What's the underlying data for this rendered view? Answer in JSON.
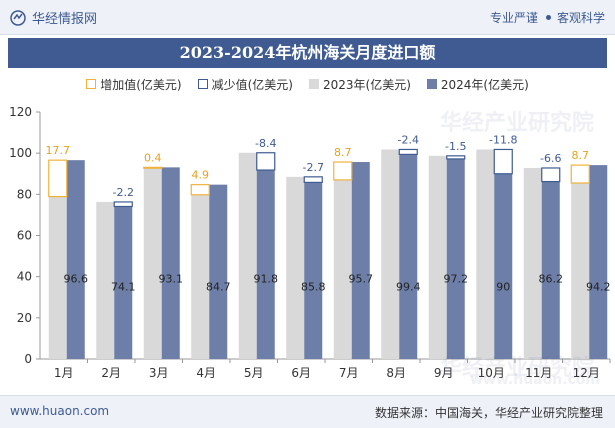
{
  "header": {
    "brand": "华经情报网",
    "tagline_a": "专业严谨",
    "tagline_b": "客观科学"
  },
  "footer": {
    "site": "www.huaon.com",
    "source": "数据来源：中国海关，华经产业研究院整理"
  },
  "watermark": {
    "text": "华经产业研究院",
    "url": "www.huaon.com"
  },
  "colors": {
    "increase": "#f2b23a",
    "decrease": "#3f5b92",
    "y2023": "#d9d9d9",
    "y2024": "#6d7fa8",
    "title_bg": "#3f5b92"
  },
  "chart_data": {
    "type": "bar",
    "title": "2023-2024年杭州海关月度进口额",
    "categories": [
      "1月",
      "2月",
      "3月",
      "4月",
      "5月",
      "6月",
      "7月",
      "8月",
      "9月",
      "10月",
      "11月",
      "12月"
    ],
    "series": [
      {
        "name": "2023年(亿美元)",
        "values": [
          78.9,
          76.3,
          92.7,
          79.8,
          100.2,
          88.5,
          87.0,
          101.8,
          98.7,
          101.8,
          92.8,
          85.5
        ]
      },
      {
        "name": "2024年(亿美元)",
        "values": [
          96.6,
          74.1,
          93.1,
          84.7,
          91.8,
          85.8,
          95.7,
          99.4,
          97.2,
          90,
          86.2,
          94.2
        ]
      }
    ],
    "change": {
      "increase_name": "增加值(亿美元)",
      "decrease_name": "减少值(亿美元)",
      "labels": [
        "17.7",
        "-2.2",
        "0.4",
        "4.9",
        "-8.4",
        "-2.7",
        "8.7",
        "-2.4",
        "-1.5",
        "-11.8",
        "-6.6",
        "8.7"
      ]
    },
    "ylim": [
      0,
      120
    ],
    "yticks": [
      0,
      20,
      40,
      60,
      80,
      100,
      120
    ],
    "grid": false,
    "legend_position": "top"
  }
}
